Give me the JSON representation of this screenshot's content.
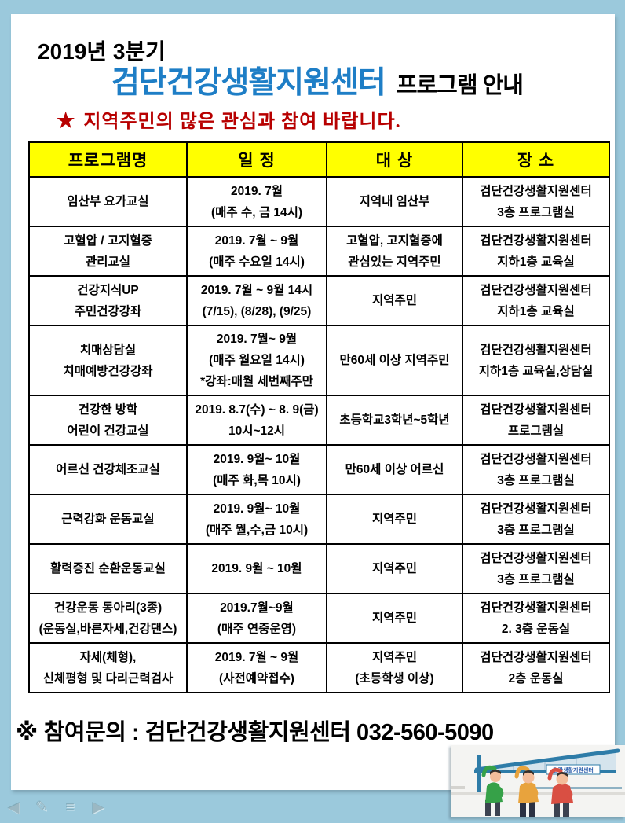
{
  "header": {
    "year_quarter": "2019년 3분기",
    "center_name": "검단건강생활지원센터",
    "program_guide": "프로그램 안내",
    "notice_star": "★",
    "notice_text": "지역주민의  많은 관심과 참여 바랍니다."
  },
  "table": {
    "headers": [
      "프로그램명",
      "일 정",
      "대 상",
      "장 소"
    ],
    "rows": [
      {
        "program": [
          "임산부 요가교실"
        ],
        "schedule": [
          "2019. 7월",
          "(매주 수, 금 14시)"
        ],
        "target": [
          "지역내 임산부"
        ],
        "place": [
          "검단건강생활지원센터",
          "3층 프로그램실"
        ]
      },
      {
        "program": [
          "고혈압 / 고지혈증",
          "관리교실"
        ],
        "schedule": [
          "2019. 7월 ~ 9월",
          "(매주 수요일 14시)"
        ],
        "target": [
          "고혈압, 고지혈증에",
          "관심있는 지역주민"
        ],
        "place": [
          "검단건강생활지원센터",
          "지하1층 교육실"
        ]
      },
      {
        "program": [
          "건강지식UP",
          "주민건강강좌"
        ],
        "schedule": [
          "2019. 7월 ~ 9월 14시",
          "(7/15), (8/28), (9/25)"
        ],
        "target": [
          "지역주민"
        ],
        "place": [
          "검단건강생활지원센터",
          "지하1층 교육실"
        ]
      },
      {
        "program": [
          "치매상담실",
          "치매예방건강강좌"
        ],
        "schedule": [
          "2019. 7월~ 9월",
          "(매주 월요일 14시)",
          "*강좌:매월 세번째주만"
        ],
        "target": [
          "만60세 이상 지역주민"
        ],
        "place": [
          "검단건강생활지원센터",
          "지하1층 교육실,상담실"
        ]
      },
      {
        "program": [
          "건강한 방학",
          "어린이 건강교실"
        ],
        "schedule": [
          "2019. 8.7(수) ~ 8. 9(금)",
          "10시~12시"
        ],
        "target": [
          "초등학교3학년~5학년"
        ],
        "place": [
          "검단건강생활지원센터",
          "프로그램실"
        ]
      },
      {
        "program": [
          "어르신 건강체조교실"
        ],
        "schedule": [
          "2019. 9월~ 10월",
          "(매주 화,목 10시)"
        ],
        "target": [
          "만60세 이상 어르신"
        ],
        "place": [
          "검단건강생활지원센터",
          "3층 프로그램실"
        ]
      },
      {
        "program": [
          "근력강화 운동교실"
        ],
        "schedule": [
          "2019. 9월~ 10월",
          "(매주 월,수,금 10시)"
        ],
        "target": [
          "지역주민"
        ],
        "place": [
          "검단건강생활지원센터",
          "3층 프로그램실"
        ]
      },
      {
        "program": [
          "활력증진 순환운동교실"
        ],
        "schedule": [
          "2019. 9월 ~ 10월"
        ],
        "target": [
          "지역주민"
        ],
        "place": [
          "검단건강생활지원센터",
          "3층 프로그램실"
        ]
      },
      {
        "program": [
          "건강운동 동아리(3종)",
          "(운동실,바른자세,건강댄스)"
        ],
        "schedule": [
          "2019.7월~9월",
          "(매주 연중운영)"
        ],
        "target": [
          "지역주민"
        ],
        "place": [
          "검단건강생활지원센터",
          "2. 3층 운동실"
        ]
      },
      {
        "program": [
          "자세(체형),",
          "신체평형 및 다리근력검사"
        ],
        "schedule": [
          "2019. 7월 ~ 9월",
          "(사전예약접수)"
        ],
        "target": [
          "지역주민",
          "(초등학생 이상)"
        ],
        "place": [
          "검단건강생활지원센터",
          "2층 운동실"
        ]
      }
    ]
  },
  "footer": {
    "reference_mark": "※",
    "contact": "참여문의 :  검단건강생활지원센터 032-560-5090"
  },
  "illustration": {
    "sign_label": "건강생활지원센터"
  },
  "nav_icons": [
    {
      "name": "back-icon",
      "glyph": "◀"
    },
    {
      "name": "edit-icon",
      "glyph": "✎"
    },
    {
      "name": "list-icon",
      "glyph": "≡"
    },
    {
      "name": "forward-icon",
      "glyph": "▶"
    }
  ],
  "colors": {
    "background_blue": "#9bc9dc",
    "brand_blue": "#1e7ec6",
    "notice_red": "#b70000",
    "header_yellow": "#ffff00",
    "illustration_teal": "#2e7ca8",
    "person_green": "#36a148",
    "person_orange": "#e8a33d",
    "person_red": "#d94f43"
  }
}
